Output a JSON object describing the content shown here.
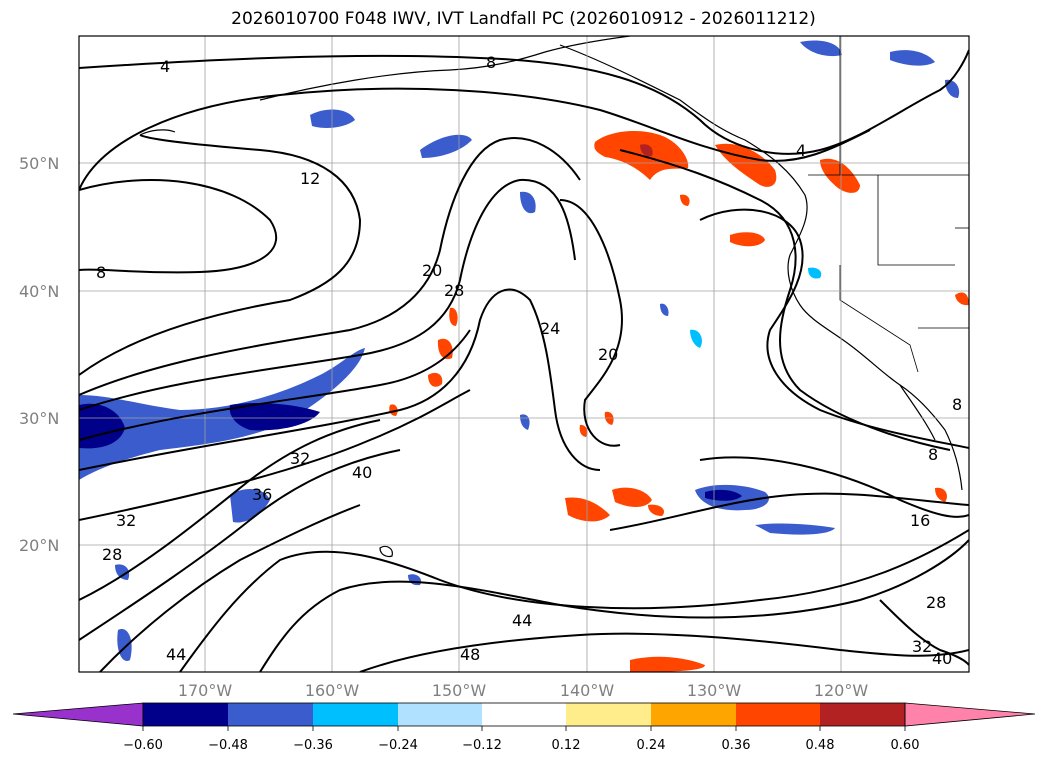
{
  "title": "2026010700 F048 IWV, IVT Landfall PC (2026010912 - 2026011212)",
  "map": {
    "lat_labels": [
      "50°N",
      "40°N",
      "30°N",
      "20°N"
    ],
    "lon_labels": [
      "170°W",
      "160°W",
      "150°W",
      "140°W",
      "130°W",
      "120°W"
    ],
    "contour_labels": [
      "4",
      "8",
      "12",
      "8",
      "20",
      "28",
      "24",
      "20",
      "4",
      "32",
      "40",
      "36",
      "32",
      "28",
      "16",
      "8",
      "8",
      "44",
      "48",
      "44",
      "28",
      "32",
      "40"
    ]
  },
  "colorbar": {
    "ticks": [
      "−0.60",
      "−0.48",
      "−0.36",
      "−0.24",
      "−0.12",
      "0.12",
      "0.24",
      "0.36",
      "0.48",
      "0.60"
    ],
    "colors": [
      "#9932cc",
      "#00008b",
      "#3a5ccc",
      "#00bfff",
      "#b0e2ff",
      "#ffffff",
      "#ffec8b",
      "#ffa500",
      "#ff4500",
      "#b22222",
      "#ff82ab"
    ]
  }
}
